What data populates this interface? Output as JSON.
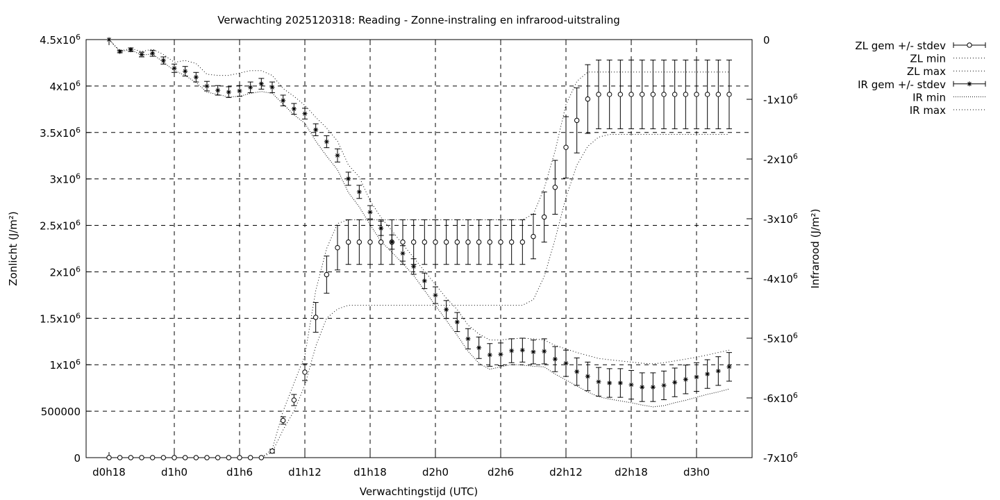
{
  "chart_data": {
    "type": "line",
    "title": "Verwachting 2025120318: Reading - Zonne-instraling en infrarood-uitstraling",
    "xlabel": "Verwachtingstijd (UTC)",
    "ylabel_left": "Zonlicht (J/m²)",
    "ylabel_right": "Infrarood (J/m²)",
    "ylim_left": [
      0,
      4500000
    ],
    "ylim_right": [
      -7000000,
      0
    ],
    "xlim_hours": [
      18,
      75
    ],
    "grid": true,
    "legend_position": "outside-right",
    "x_tick_labels": [
      "d0h18",
      "d1h0",
      "d1h6",
      "d1h12",
      "d1h18",
      "d2h0",
      "d2h6",
      "d2h12",
      "d2h18",
      "d3h0"
    ],
    "y_left_tick_labels": [
      {
        "mantissa": "0",
        "exp": ""
      },
      {
        "mantissa": "500000",
        "exp": ""
      },
      {
        "mantissa": "1x10",
        "exp": "6"
      },
      {
        "mantissa": "1.5x10",
        "exp": "6"
      },
      {
        "mantissa": "2x10",
        "exp": "6"
      },
      {
        "mantissa": "2.5x10",
        "exp": "6"
      },
      {
        "mantissa": "3x10",
        "exp": "6"
      },
      {
        "mantissa": "3.5x10",
        "exp": "6"
      },
      {
        "mantissa": "4x10",
        "exp": "6"
      },
      {
        "mantissa": "4.5x10",
        "exp": "6"
      }
    ],
    "y_right_tick_labels": [
      {
        "mantissa": "0",
        "exp": ""
      },
      {
        "mantissa": "-1x10",
        "exp": "6"
      },
      {
        "mantissa": "-2x10",
        "exp": "6"
      },
      {
        "mantissa": "-3x10",
        "exp": "6"
      },
      {
        "mantissa": "-4x10",
        "exp": "6"
      },
      {
        "mantissa": "-5x10",
        "exp": "6"
      },
      {
        "mantissa": "-6x10",
        "exp": "6"
      },
      {
        "mantissa": "-7x10",
        "exp": "6"
      }
    ],
    "legend": [
      {
        "label": "ZL gem +/- stdev",
        "style": "errorbar-circle"
      },
      {
        "label": "ZL min",
        "style": "dotted"
      },
      {
        "label": "ZL max",
        "style": "dotted"
      },
      {
        "label": "IR gem +/- stdev",
        "style": "errorbar-star"
      },
      {
        "label": "IR min",
        "style": "dotted-dense"
      },
      {
        "label": "IR max",
        "style": "dotted"
      }
    ],
    "x_hours": [
      18,
      19,
      20,
      21,
      22,
      23,
      24,
      25,
      26,
      27,
      28,
      29,
      30,
      31,
      32,
      33,
      34,
      35,
      36,
      37,
      38,
      39,
      40,
      41,
      42,
      43,
      44,
      45,
      46,
      47,
      48,
      49,
      50,
      51,
      52,
      53,
      54,
      55,
      56,
      57,
      58,
      59,
      60,
      61,
      62,
      63,
      64,
      65,
      66,
      67,
      68,
      69,
      70,
      71,
      72,
      73,
      74,
      75
    ],
    "series": [
      {
        "name": "ZL gem +/- stdev",
        "axis": "left",
        "mean": [
          0,
          0,
          0,
          0,
          0,
          0,
          0,
          0,
          0,
          0,
          0,
          0,
          0,
          0,
          0,
          70000,
          400000,
          620000,
          920000,
          1510000,
          1970000,
          2260000,
          2320000,
          2320000,
          2320000,
          2320000,
          2320000,
          2320000,
          2320000,
          2320000,
          2320000,
          2320000,
          2320000,
          2320000,
          2320000,
          2320000,
          2320000,
          2320000,
          2320000,
          2380000,
          2590000,
          2910000,
          3340000,
          3630000,
          3860000,
          3910000,
          3910000,
          3910000,
          3910000,
          3910000,
          3910000,
          3910000,
          3910000,
          3910000,
          3910000,
          3910000,
          3910000,
          3910000
        ],
        "stdev": [
          0,
          0,
          0,
          0,
          0,
          0,
          0,
          0,
          0,
          0,
          0,
          0,
          0,
          0,
          0,
          20000,
          40000,
          60000,
          90000,
          160000,
          200000,
          240000,
          240000,
          240000,
          240000,
          240000,
          240000,
          240000,
          240000,
          240000,
          240000,
          240000,
          240000,
          240000,
          240000,
          240000,
          240000,
          240000,
          240000,
          240000,
          270000,
          290000,
          330000,
          350000,
          370000,
          370000,
          370000,
          370000,
          370000,
          370000,
          370000,
          370000,
          370000,
          370000,
          370000,
          370000,
          370000,
          370000
        ]
      },
      {
        "name": "ZL min",
        "axis": "left",
        "values": [
          0,
          0,
          0,
          0,
          0,
          0,
          0,
          0,
          0,
          0,
          0,
          0,
          0,
          0,
          0,
          60000,
          300000,
          500000,
          780000,
          1200000,
          1500000,
          1600000,
          1640000,
          1640000,
          1640000,
          1640000,
          1640000,
          1640000,
          1640000,
          1640000,
          1640000,
          1640000,
          1640000,
          1640000,
          1640000,
          1640000,
          1640000,
          1640000,
          1640000,
          1700000,
          1950000,
          2350000,
          2800000,
          3150000,
          3350000,
          3450000,
          3480000,
          3480000,
          3480000,
          3480000,
          3480000,
          3480000,
          3480000,
          3480000,
          3480000,
          3480000,
          3480000,
          3480000
        ]
      },
      {
        "name": "ZL max",
        "axis": "left",
        "values": [
          0,
          0,
          0,
          0,
          0,
          0,
          0,
          0,
          0,
          0,
          0,
          0,
          0,
          0,
          0,
          90000,
          500000,
          800000,
          1100000,
          1800000,
          2250000,
          2520000,
          2560000,
          2560000,
          2560000,
          2560000,
          2560000,
          2560000,
          2560000,
          2560000,
          2560000,
          2560000,
          2560000,
          2560000,
          2560000,
          2560000,
          2560000,
          2560000,
          2560000,
          2620000,
          2900000,
          3300000,
          3800000,
          4050000,
          4150000,
          4150000,
          4150000,
          4150000,
          4150000,
          4150000,
          4150000,
          4150000,
          4150000,
          4150000,
          4150000,
          4150000,
          4150000,
          4150000
        ]
      },
      {
        "name": "IR gem +/- stdev",
        "axis": "right",
        "mean": [
          0,
          -200000,
          -170000,
          -250000,
          -230000,
          -350000,
          -480000,
          -530000,
          -630000,
          -780000,
          -850000,
          -880000,
          -860000,
          -800000,
          -740000,
          -800000,
          -1020000,
          -1160000,
          -1240000,
          -1510000,
          -1710000,
          -1940000,
          -2330000,
          -2550000,
          -2890000,
          -3160000,
          -3390000,
          -3580000,
          -3800000,
          -4040000,
          -4280000,
          -4520000,
          -4730000,
          -5010000,
          -5160000,
          -5280000,
          -5270000,
          -5210000,
          -5200000,
          -5230000,
          -5220000,
          -5350000,
          -5420000,
          -5560000,
          -5640000,
          -5730000,
          -5750000,
          -5750000,
          -5780000,
          -5820000,
          -5820000,
          -5790000,
          -5740000,
          -5690000,
          -5650000,
          -5600000,
          -5550000,
          -5480000
        ],
        "stdev": [
          0,
          20000,
          30000,
          40000,
          50000,
          60000,
          70000,
          80000,
          80000,
          80000,
          80000,
          90000,
          90000,
          90000,
          90000,
          90000,
          90000,
          90000,
          90000,
          100000,
          100000,
          110000,
          110000,
          110000,
          110000,
          120000,
          120000,
          130000,
          130000,
          130000,
          140000,
          150000,
          160000,
          170000,
          180000,
          190000,
          190000,
          200000,
          200000,
          200000,
          210000,
          210000,
          220000,
          230000,
          240000,
          240000,
          240000,
          240000,
          240000,
          240000,
          240000,
          240000,
          240000,
          240000,
          240000,
          240000,
          240000,
          240000
        ]
      },
      {
        "name": "IR min",
        "axis": "right",
        "values": [
          0,
          -200000,
          -170000,
          -260000,
          -240000,
          -380000,
          -520000,
          -600000,
          -720000,
          -880000,
          -920000,
          -960000,
          -950000,
          -900000,
          -870000,
          -900000,
          -1080000,
          -1260000,
          -1400000,
          -1700000,
          -1950000,
          -2180000,
          -2560000,
          -2800000,
          -3100000,
          -3380000,
          -3560000,
          -3750000,
          -3950000,
          -4200000,
          -4450000,
          -4700000,
          -4950000,
          -5220000,
          -5420000,
          -5520000,
          -5480000,
          -5440000,
          -5450000,
          -5470000,
          -5480000,
          -5600000,
          -5700000,
          -5800000,
          -5900000,
          -5980000,
          -6020000,
          -6050000,
          -6080000,
          -6120000,
          -6150000,
          -6130000,
          -6080000,
          -6040000,
          -5990000,
          -5940000,
          -5900000,
          -5850000
        ]
      },
      {
        "name": "IR max",
        "axis": "right",
        "values": [
          0,
          -190000,
          -150000,
          -200000,
          -160000,
          -250000,
          -380000,
          -350000,
          -400000,
          -580000,
          -600000,
          -600000,
          -560000,
          -520000,
          -520000,
          -600000,
          -820000,
          -950000,
          -1100000,
          -1300000,
          -1480000,
          -1700000,
          -2100000,
          -2300000,
          -2700000,
          -2980000,
          -3200000,
          -3430000,
          -3650000,
          -3880000,
          -4100000,
          -4330000,
          -4520000,
          -4780000,
          -4930000,
          -5030000,
          -5030000,
          -5010000,
          -5000000,
          -5010000,
          -5030000,
          -5120000,
          -5180000,
          -5240000,
          -5290000,
          -5340000,
          -5360000,
          -5380000,
          -5400000,
          -5420000,
          -5430000,
          -5410000,
          -5380000,
          -5350000,
          -5320000,
          -5280000,
          -5240000,
          -5200000
        ]
      }
    ]
  }
}
